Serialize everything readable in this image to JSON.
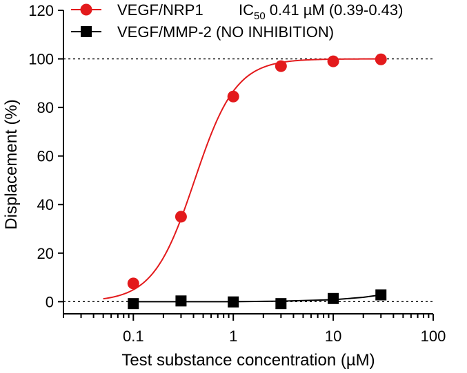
{
  "chart_data": {
    "type": "scatter",
    "title": "",
    "xlabel": "Test substance concentration (µM)",
    "ylabel": "Displacement (%)",
    "xscale": "log",
    "xlim": [
      0.02,
      100
    ],
    "ylim": [
      -5,
      120
    ],
    "x_ticks": [
      {
        "value": 0.1,
        "label": "0.1"
      },
      {
        "value": 1,
        "label": "1"
      },
      {
        "value": 10,
        "label": "10"
      },
      {
        "value": 100,
        "label": "100"
      }
    ],
    "y_ticks": [
      {
        "value": 0,
        "label": "0"
      },
      {
        "value": 20,
        "label": "20"
      },
      {
        "value": 40,
        "label": "40"
      },
      {
        "value": 60,
        "label": "60"
      },
      {
        "value": 80,
        "label": "80"
      },
      {
        "value": 100,
        "label": "100"
      },
      {
        "value": 120,
        "label": "120"
      }
    ],
    "reference_lines": [
      0,
      100
    ],
    "legend_position": "top",
    "series": [
      {
        "name": "VEGF/NRP1",
        "legend_label": "VEGF/NRP1",
        "ic50_prefix": "IC",
        "ic50_sub": "50",
        "ic50_value": " 0.41 µM (0.39-0.43)",
        "color": "#e31a1c",
        "marker": "circle",
        "points": [
          {
            "x": 0.1,
            "y": 7.5
          },
          {
            "x": 0.3,
            "y": 35.0
          },
          {
            "x": 1,
            "y": 84.5
          },
          {
            "x": 3,
            "y": 97.0
          },
          {
            "x": 10,
            "y": 99.0
          },
          {
            "x": 30,
            "y": 99.8
          }
        ],
        "fit": {
          "model": "hill",
          "bottom": 0,
          "top": 100,
          "ic50": 0.41,
          "hill": 2.1,
          "x_from": 0.05,
          "x_to": 30
        }
      },
      {
        "name": "VEGF/MMP-2",
        "legend_label": "VEGF/MMP-2 (NO INHIBITION)",
        "color": "#000000",
        "marker": "square",
        "points": [
          {
            "x": 0.1,
            "y": -0.8
          },
          {
            "x": 0.3,
            "y": 0.3
          },
          {
            "x": 1,
            "y": -0.1
          },
          {
            "x": 3,
            "y": -0.8
          },
          {
            "x": 10,
            "y": 1.3
          },
          {
            "x": 30,
            "y": 2.8
          }
        ],
        "fit_points": [
          {
            "x": 0.1,
            "y": 0.0
          },
          {
            "x": 1,
            "y": 0.0
          },
          {
            "x": 3,
            "y": 0.2
          },
          {
            "x": 10,
            "y": 0.8
          },
          {
            "x": 20,
            "y": 1.8
          },
          {
            "x": 30,
            "y": 2.8
          }
        ]
      }
    ]
  }
}
